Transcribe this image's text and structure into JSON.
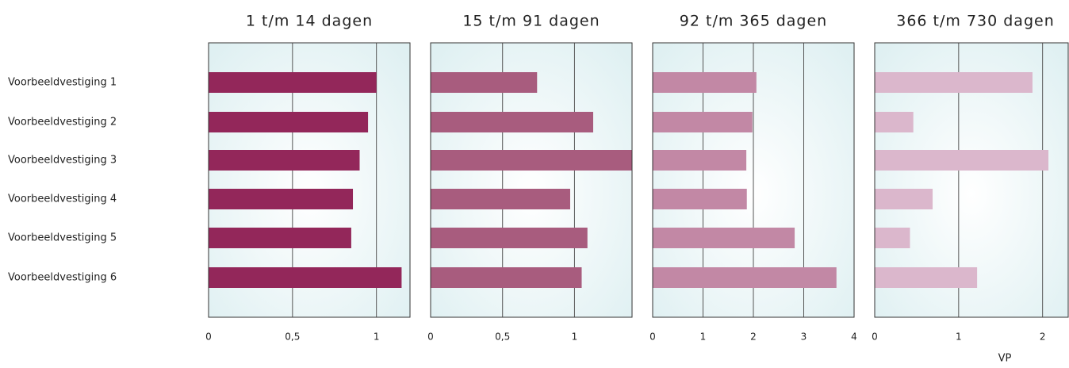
{
  "chart_data": [
    {
      "type": "bar",
      "orientation": "horizontal",
      "title": "1 t/m 14 dagen",
      "categories": [
        "Voorbeeldvestiging 1",
        "Voorbeeldvestiging 2",
        "Voorbeeldvestiging 3",
        "Voorbeeldvestiging 4",
        "Voorbeeldvestiging 5",
        "Voorbeeldvestiging 6"
      ],
      "values": [
        1.0,
        0.95,
        0.9,
        0.86,
        0.85,
        1.15
      ],
      "color": "#93275a",
      "xlim": [
        0,
        1.2
      ],
      "xticks": [
        0,
        {
          "value": 0.5,
          "label": "0,5"
        },
        1
      ],
      "grid": true
    },
    {
      "type": "bar",
      "orientation": "horizontal",
      "title": "15 t/m 91 dagen",
      "values": [
        0.74,
        1.13,
        1.4,
        0.97,
        1.09,
        1.05
      ],
      "color": "#a85c7e",
      "xlim": [
        0,
        1.4
      ],
      "xticks": [
        0,
        {
          "value": 0.5,
          "label": "0,5"
        },
        1
      ],
      "grid": true
    },
    {
      "type": "bar",
      "orientation": "horizontal",
      "title": "92 t/m 365 dagen",
      "values": [
        2.06,
        1.98,
        1.86,
        1.87,
        2.82,
        3.65
      ],
      "color": "#c288a5",
      "xlim": [
        0,
        4
      ],
      "xticks": [
        0,
        1,
        2,
        3,
        4
      ],
      "grid": true
    },
    {
      "type": "bar",
      "orientation": "horizontal",
      "title": "366 t/m 730 dagen",
      "values": [
        1.88,
        0.46,
        2.07,
        0.69,
        0.42,
        1.22
      ],
      "color": "#dbb7cc",
      "xlim": [
        0,
        2.4
      ],
      "xticks": [
        0,
        1,
        2
      ],
      "grid": true,
      "xlabel": "VP"
    }
  ]
}
